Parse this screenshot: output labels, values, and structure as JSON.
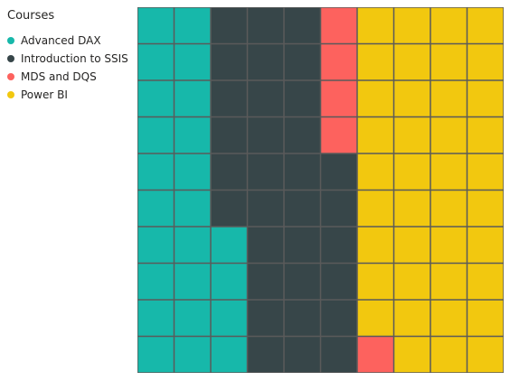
{
  "chart_data": {
    "type": "waffle",
    "legend": {
      "title": "Courses",
      "placement": "top-left"
    },
    "grid": {
      "rows": 10,
      "columns": 10,
      "fill_order": "column-major, bottom-to-top"
    },
    "series": [
      {
        "name": "Advanced DAX",
        "value": 24,
        "color": "#17B8AA"
      },
      {
        "name": "Introduction to SSIS",
        "value": 32,
        "color": "#374649"
      },
      {
        "name": "MDS and DQS",
        "value": 5,
        "color": "#FD625E"
      },
      {
        "name": "Power BI",
        "value": 39,
        "color": "#F2C80F"
      }
    ],
    "cell_border_color": "#5a5a5a"
  }
}
